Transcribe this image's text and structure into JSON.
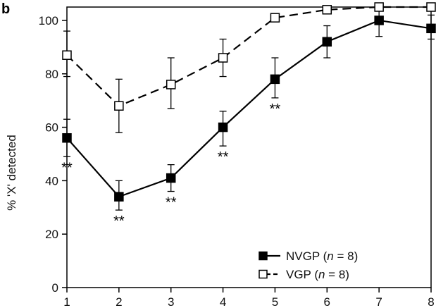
{
  "chart_data": {
    "type": "line",
    "panel_label": "b",
    "ylabel": "% 'X' detected",
    "xlabel": "",
    "xlim": [
      1,
      8
    ],
    "ylim": [
      0,
      105
    ],
    "x": [
      1,
      2,
      3,
      4,
      5,
      6,
      7,
      8
    ],
    "yticks": [
      "0",
      "20",
      "40",
      "60",
      "80",
      "100"
    ],
    "xticks": [
      "1",
      "2",
      "3",
      "4",
      "5",
      "6",
      "7",
      "8"
    ],
    "series": [
      {
        "name": "NVGP",
        "n_label": "n",
        "n_value": " = 8)",
        "marker": "filled-square",
        "line": "solid",
        "color": "#000000",
        "values": [
          56,
          34,
          41,
          60,
          78,
          92,
          100,
          97
        ],
        "err_upper": [
          63,
          40,
          46,
          66,
          86,
          98,
          106,
          102
        ],
        "err_lower": [
          49,
          29,
          36,
          53,
          71,
          86,
          94,
          93
        ],
        "significance": [
          "**",
          "**",
          "**",
          "**",
          "**",
          "",
          "",
          ""
        ]
      },
      {
        "name": "VGP",
        "n_label": "n",
        "n_value": " = 8)",
        "marker": "open-square",
        "line": "dashed",
        "color": "#000000",
        "values": [
          87,
          68,
          76,
          86,
          101,
          104,
          105,
          105
        ],
        "err_upper": [
          96,
          78,
          86,
          93,
          101,
          104,
          105,
          105
        ],
        "err_lower": [
          79,
          58,
          67,
          79,
          101,
          104,
          105,
          105
        ],
        "significance": [
          "",
          "",
          "",
          "",
          "",
          "",
          "",
          ""
        ]
      }
    ],
    "legend_position": "bottom-right",
    "grid": false
  }
}
